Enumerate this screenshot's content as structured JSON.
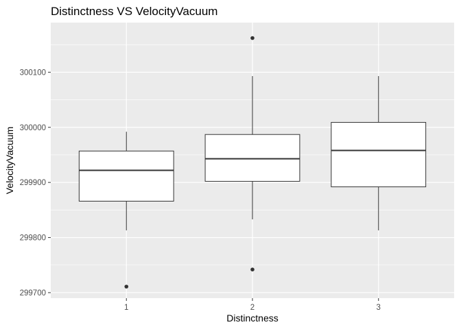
{
  "chart_data": {
    "type": "box",
    "title": "Distinctness VS VelocityVacuum",
    "xlabel": "Distinctness",
    "ylabel": "VelocityVacuum",
    "categories": [
      "1",
      "2",
      "3"
    ],
    "ylim": [
      299690,
      300190
    ],
    "yticks": [
      299700,
      299800,
      299900,
      300000,
      300100
    ],
    "ytick_labels": [
      "299700",
      "299800",
      "299900",
      "300000",
      "300100"
    ],
    "boxes": [
      {
        "category": "1",
        "min": 299813,
        "q1": 299866,
        "median": 299922,
        "q3": 299957,
        "max": 299992,
        "outliers": [
          299711
        ]
      },
      {
        "category": "2",
        "min": 299833,
        "q1": 299902,
        "median": 299943,
        "q3": 299987,
        "max": 300093,
        "outliers": [
          299742,
          300162
        ]
      },
      {
        "category": "3",
        "min": 299813,
        "q1": 299892,
        "median": 299958,
        "q3": 300009,
        "max": 300093,
        "outliers": []
      }
    ],
    "grid": true,
    "background": "#ebebeb",
    "colors": {
      "panel": "#ebebeb",
      "grid_major": "#ffffff",
      "box_fill": "#ffffff",
      "line": "#333333",
      "outlier": "#333333"
    }
  }
}
